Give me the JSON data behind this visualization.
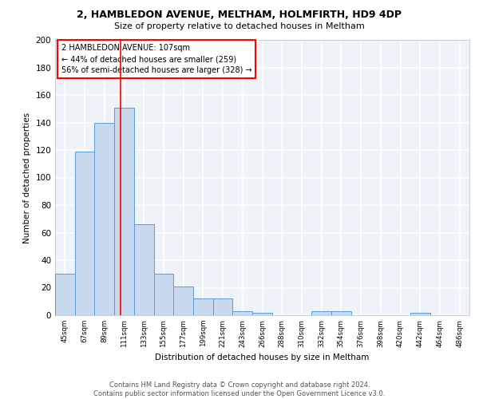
{
  "title1": "2, HAMBLEDON AVENUE, MELTHAM, HOLMFIRTH, HD9 4DP",
  "title2": "Size of property relative to detached houses in Meltham",
  "xlabel": "Distribution of detached houses by size in Meltham",
  "ylabel": "Number of detached properties",
  "bar_labels": [
    "45sqm",
    "67sqm",
    "89sqm",
    "111sqm",
    "133sqm",
    "155sqm",
    "177sqm",
    "199sqm",
    "221sqm",
    "243sqm",
    "266sqm",
    "288sqm",
    "310sqm",
    "332sqm",
    "354sqm",
    "376sqm",
    "398sqm",
    "420sqm",
    "442sqm",
    "464sqm",
    "486sqm"
  ],
  "bar_values": [
    30,
    119,
    140,
    151,
    66,
    30,
    21,
    12,
    12,
    3,
    2,
    0,
    0,
    3,
    3,
    0,
    0,
    0,
    2,
    0,
    0
  ],
  "bar_color": "#c8d9ee",
  "bar_edge_color": "#5b9bd5",
  "background_color": "#eef2f9",
  "grid_color": "#ffffff",
  "annotation_line1": "2 HAMBLEDON AVENUE: 107sqm",
  "annotation_line2": "← 44% of detached houses are smaller (259)",
  "annotation_line3": "56% of semi-detached houses are larger (328) →",
  "annotation_box_edge_color": "red",
  "vline_color": "red",
  "ylim": [
    0,
    200
  ],
  "yticks": [
    0,
    20,
    40,
    60,
    80,
    100,
    120,
    140,
    160,
    180,
    200
  ],
  "footer_text": "Contains HM Land Registry data © Crown copyright and database right 2024.\nContains public sector information licensed under the Open Government Licence v3.0.",
  "figsize": [
    6.0,
    5.0
  ],
  "dpi": 100
}
